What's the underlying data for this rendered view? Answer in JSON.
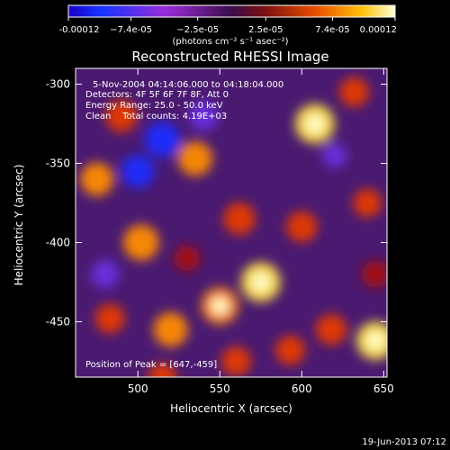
{
  "chart_data": {
    "type": "heatmap",
    "title": "Reconstructed RHESSI Image",
    "xlabel": "Heliocentric X (arcsec)",
    "ylabel": "Heliocentric Y (arcsec)",
    "xlim": [
      462,
      652
    ],
    "ylim": [
      -485,
      -290
    ],
    "x_ticks": [
      500,
      550,
      600,
      650
    ],
    "y_ticks": [
      -300,
      -350,
      -400,
      -450
    ],
    "colorbar": {
      "label": "(photons cm⁻² s⁻¹ asec⁻²)",
      "range": [
        -0.00012,
        0.00012
      ],
      "tick_values": [
        -0.00012,
        -7.4e-05,
        -2.5e-05,
        2.5e-05,
        7.4e-05,
        0.00012
      ],
      "tick_labels": [
        "-0.00012",
        "−7.4e-05",
        "−2.5e-05",
        "2.5e-05",
        "7.4e-05",
        "0.00012"
      ]
    },
    "annotations": [
      "5-Nov-2004 04:14:06.000 to 04:18:04.000",
      "Detectors: 4F 5F 6F 7F 8F, Att 0",
      "Energy Range: 25.0 - 50.0 keV",
      "Clean    Total counts: 4.19E+03"
    ],
    "peak_label": "Position of Peak = [647,-459]",
    "peak": [
      647,
      -459
    ],
    "blobs": [
      {
        "x": 608,
        "y": -325,
        "v": 1.0
      },
      {
        "x": 575,
        "y": -425,
        "v": 1.0
      },
      {
        "x": 550,
        "y": -440,
        "v": 0.9
      },
      {
        "x": 562,
        "y": -385,
        "v": 0.7
      },
      {
        "x": 645,
        "y": -462,
        "v": 0.95
      },
      {
        "x": 618,
        "y": -455,
        "v": 0.65
      },
      {
        "x": 593,
        "y": -468,
        "v": 0.6
      },
      {
        "x": 502,
        "y": -400,
        "v": 0.85
      },
      {
        "x": 475,
        "y": -360,
        "v": 0.75
      },
      {
        "x": 490,
        "y": -320,
        "v": 0.7
      },
      {
        "x": 520,
        "y": -455,
        "v": 0.8
      },
      {
        "x": 483,
        "y": -448,
        "v": 0.6
      },
      {
        "x": 535,
        "y": -347,
        "v": 0.8
      },
      {
        "x": 600,
        "y": -390,
        "v": 0.65
      },
      {
        "x": 640,
        "y": -375,
        "v": 0.55
      },
      {
        "x": 632,
        "y": -305,
        "v": 0.6
      },
      {
        "x": 560,
        "y": -475,
        "v": 0.6
      },
      {
        "x": 515,
        "y": -485,
        "v": 0.55
      },
      {
        "x": 530,
        "y": -410,
        "v": 0.45
      },
      {
        "x": 645,
        "y": -420,
        "v": 0.5
      },
      {
        "x": 515,
        "y": -335,
        "v": -0.85
      },
      {
        "x": 500,
        "y": -355,
        "v": -0.75
      },
      {
        "x": 540,
        "y": -320,
        "v": -0.6
      },
      {
        "x": 480,
        "y": -420,
        "v": -0.55
      },
      {
        "x": 620,
        "y": -345,
        "v": -0.4
      }
    ]
  },
  "footer": {
    "timestamp": "19-Jun-2013 07:12"
  }
}
